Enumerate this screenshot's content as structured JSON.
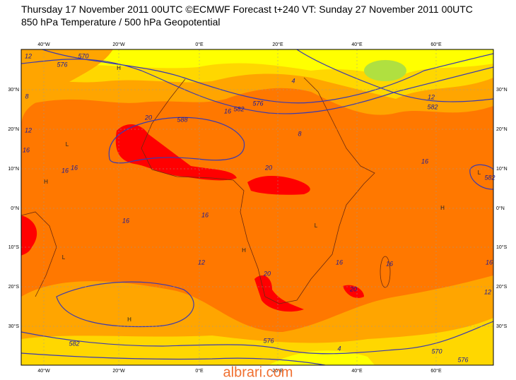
{
  "header": {
    "line1": "Thursday 17 November 2011 00UTC ©ECMWF Forecast t+240 VT: Sunday 27 November 2011 00UTC",
    "line2": "850 hPa Temperature / 500 hPa Geopotential"
  },
  "map": {
    "lon_labels": [
      "40°W",
      "20°W",
      "0°E",
      "20°E",
      "40°E",
      "60°E"
    ],
    "lat_labels": [
      "30°N",
      "20°N",
      "10°N",
      "0°N",
      "10°S",
      "20°S",
      "30°S"
    ],
    "contour_labels": [
      "12",
      "576",
      "570",
      "8",
      "12",
      "16",
      "20",
      "588",
      "16",
      "582",
      "576",
      "16",
      "16",
      "16",
      "16",
      "20",
      "8",
      "4",
      "12",
      "582",
      "16",
      "582",
      "12",
      "20",
      "16",
      "16",
      "20",
      "582",
      "576",
      "4",
      "570",
      "16",
      "12",
      "576"
    ],
    "pressure_centers": [
      "H",
      "H",
      "L",
      "L",
      "H",
      "L",
      "H",
      "H",
      "L"
    ]
  },
  "watermark": "albrari.com"
}
